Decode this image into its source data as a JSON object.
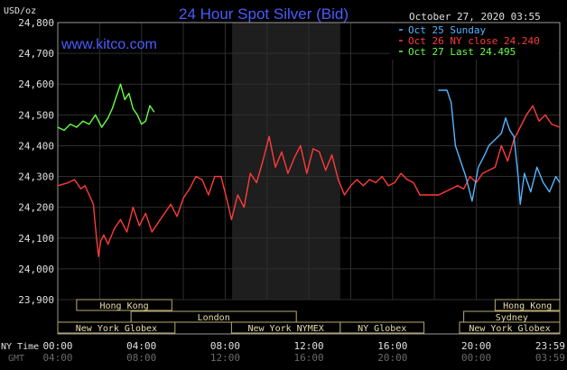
{
  "chart_data": {
    "type": "line",
    "title": "24 Hour Spot Silver (Bid)",
    "website": "www.kitco.com",
    "timestamp": "October 27, 2020 03:55",
    "y_unit": "USD/oz",
    "ylim": [
      23.9,
      24.8
    ],
    "y_ticks": [
      "24,800",
      "24,700",
      "24,600",
      "24,500",
      "24,400",
      "24,300",
      "24,200",
      "24,100",
      "24,000",
      "23,900"
    ],
    "x_tz_label": "NY Time",
    "x_tz2_label": "GMT",
    "x_ticks": [
      {
        "ny": "00:00",
        "gmt": "04:00"
      },
      {
        "ny": "04:00",
        "gmt": "08:00"
      },
      {
        "ny": "08:00",
        "gmt": "12:00"
      },
      {
        "ny": "12:00",
        "gmt": "16:00"
      },
      {
        "ny": "16:00",
        "gmt": "20:00"
      },
      {
        "ny": "20:00",
        "gmt": "00:00"
      },
      {
        "ny": "23:59",
        "gmt": "03:59"
      }
    ],
    "legend": [
      {
        "label": "Oct 25 Sunday",
        "color": "#55b4ff"
      },
      {
        "label": "Oct 26 NY close 24.240",
        "color": "#ff3b3b"
      },
      {
        "label": "Oct 27 Last 24.495",
        "color": "#66ff44"
      }
    ],
    "shaded_session_hours": [
      8.33,
      13.5
    ],
    "markets": [
      {
        "label": "Hong Kong",
        "row": 0,
        "start": 0.9,
        "end": 5.45
      },
      {
        "label": "Hong Kong",
        "row": 0,
        "start": 20.9,
        "end": 23.99
      },
      {
        "label": "London",
        "row": 1,
        "start": 3.5,
        "end": 11.4
      },
      {
        "label": "Sydney",
        "row": 1,
        "start": 19.4,
        "end": 23.99
      },
      {
        "label": "New York Globex",
        "row": 2,
        "start": 0.0,
        "end": 5.6
      },
      {
        "label": "New York NYMEX",
        "row": 2,
        "start": 8.3,
        "end": 13.5
      },
      {
        "label": "NY Globex",
        "row": 2,
        "start": 13.5,
        "end": 17.5
      },
      {
        "label": "New York Globex",
        "row": 2,
        "start": 19.2,
        "end": 23.99
      }
    ],
    "series": [
      {
        "color": "#ff3b3b",
        "x": [
          0.0,
          0.5,
          0.8,
          1.1,
          1.3,
          1.5,
          1.7,
          1.85,
          1.95,
          2.05,
          2.2,
          2.4,
          2.7,
          3.0,
          3.3,
          3.6,
          3.9,
          4.2,
          4.5,
          4.8,
          5.1,
          5.4,
          5.7,
          6.0,
          6.3,
          6.6,
          6.9,
          7.2,
          7.5,
          7.8,
          8.1,
          8.3,
          8.6,
          8.9,
          9.2,
          9.5,
          9.8,
          10.1,
          10.4,
          10.7,
          11.0,
          11.3,
          11.6,
          11.9,
          12.2,
          12.5,
          12.8,
          13.1,
          13.4,
          13.7,
          14.0,
          14.3,
          14.6,
          14.9,
          15.2,
          15.5,
          15.8,
          16.1,
          16.4,
          16.7,
          17.0,
          17.3,
          17.6,
          17.9,
          18.2,
          18.5,
          18.8,
          19.1,
          19.4,
          19.7,
          20.0,
          20.3,
          20.6,
          20.9,
          21.2,
          21.5,
          21.8,
          22.1,
          22.4,
          22.7,
          23.0,
          23.3,
          23.6,
          23.99
        ],
        "values": [
          24.27,
          24.28,
          24.29,
          24.26,
          24.27,
          24.24,
          24.21,
          24.1,
          24.04,
          24.09,
          24.11,
          24.08,
          24.13,
          24.16,
          24.12,
          24.2,
          24.14,
          24.18,
          24.12,
          24.15,
          24.18,
          24.21,
          24.17,
          24.23,
          24.26,
          24.3,
          24.29,
          24.24,
          24.3,
          24.3,
          24.22,
          24.16,
          24.24,
          24.2,
          24.31,
          24.28,
          24.35,
          24.43,
          24.33,
          24.38,
          24.31,
          24.36,
          24.4,
          24.31,
          24.39,
          24.38,
          24.32,
          24.37,
          24.29,
          24.24,
          24.27,
          24.29,
          24.27,
          24.29,
          24.28,
          24.3,
          24.27,
          24.28,
          24.31,
          24.29,
          24.28,
          24.24,
          24.24,
          24.24,
          24.24,
          24.25,
          24.26,
          24.27,
          24.26,
          24.3,
          24.28,
          24.31,
          24.32,
          24.33,
          24.4,
          24.35,
          24.42,
          24.46,
          24.5,
          24.53,
          24.48,
          24.5,
          24.47,
          24.46
        ]
      },
      {
        "color": "#55b4ff",
        "x": [
          18.2,
          18.6,
          18.8,
          19.0,
          19.2,
          19.5,
          19.8,
          20.1,
          20.4,
          20.6,
          20.9,
          21.2,
          21.4,
          21.6,
          21.8,
          22.0,
          22.1,
          22.3,
          22.6,
          22.9,
          23.2,
          23.5,
          23.8,
          23.99
        ],
        "values": [
          24.58,
          24.58,
          24.54,
          24.4,
          24.36,
          24.3,
          24.22,
          24.33,
          24.37,
          24.4,
          24.42,
          24.44,
          24.49,
          24.45,
          24.43,
          24.3,
          24.21,
          24.31,
          24.25,
          24.33,
          24.28,
          24.25,
          24.3,
          24.28
        ]
      },
      {
        "color": "#66ff44",
        "x": [
          0.0,
          0.3,
          0.6,
          0.9,
          1.2,
          1.5,
          1.8,
          2.1,
          2.4,
          2.6,
          2.8,
          3.0,
          3.2,
          3.4,
          3.6,
          3.8,
          4.0,
          4.2,
          4.4,
          4.6
        ],
        "values": [
          24.46,
          24.45,
          24.47,
          24.46,
          24.48,
          24.47,
          24.5,
          24.46,
          24.49,
          24.52,
          24.56,
          24.6,
          24.55,
          24.57,
          24.52,
          24.5,
          24.47,
          24.48,
          24.53,
          24.51
        ]
      }
    ]
  }
}
